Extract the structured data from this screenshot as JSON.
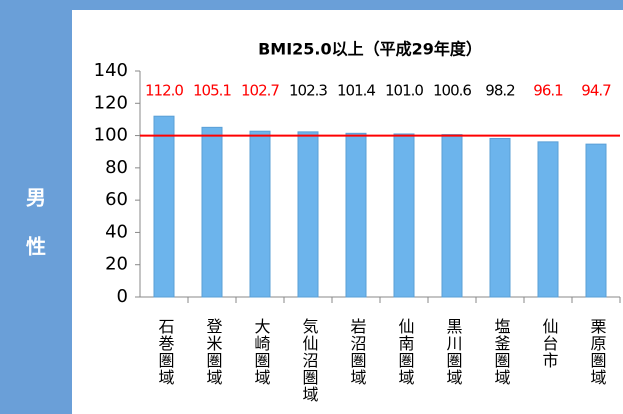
{
  "side_label": [
    "男",
    "性"
  ],
  "chart_data": {
    "type": "bar",
    "title": "BMI25.0以上（平成29年度）",
    "categories": [
      "石巻圏域",
      "登米圏域",
      "大崎圏域",
      "気仙沼圏域",
      "岩沼圏域",
      "仙南圏域",
      "黒川圏域",
      "塩釜圏域",
      "仙台市",
      "栗原圏域"
    ],
    "values": [
      112.0,
      105.1,
      102.7,
      102.3,
      101.4,
      101.0,
      100.6,
      98.2,
      96.1,
      94.7
    ],
    "value_labels": [
      "112.0",
      "105.1",
      "102.7",
      "102.3",
      "101.4",
      "101.0",
      "100.6",
      "98.2",
      "96.1",
      "94.7"
    ],
    "value_label_colors": [
      "#ff0000",
      "#ff0000",
      "#ff0000",
      "#000000",
      "#000000",
      "#000000",
      "#000000",
      "#000000",
      "#ff0000",
      "#ff0000"
    ],
    "color": "#6cb4ec",
    "reference_line": {
      "value": 100,
      "color": "#ff0000"
    },
    "ylim": [
      0,
      140
    ],
    "yticks": [
      0,
      20,
      40,
      60,
      80,
      100,
      120,
      140
    ],
    "grid": false
  }
}
